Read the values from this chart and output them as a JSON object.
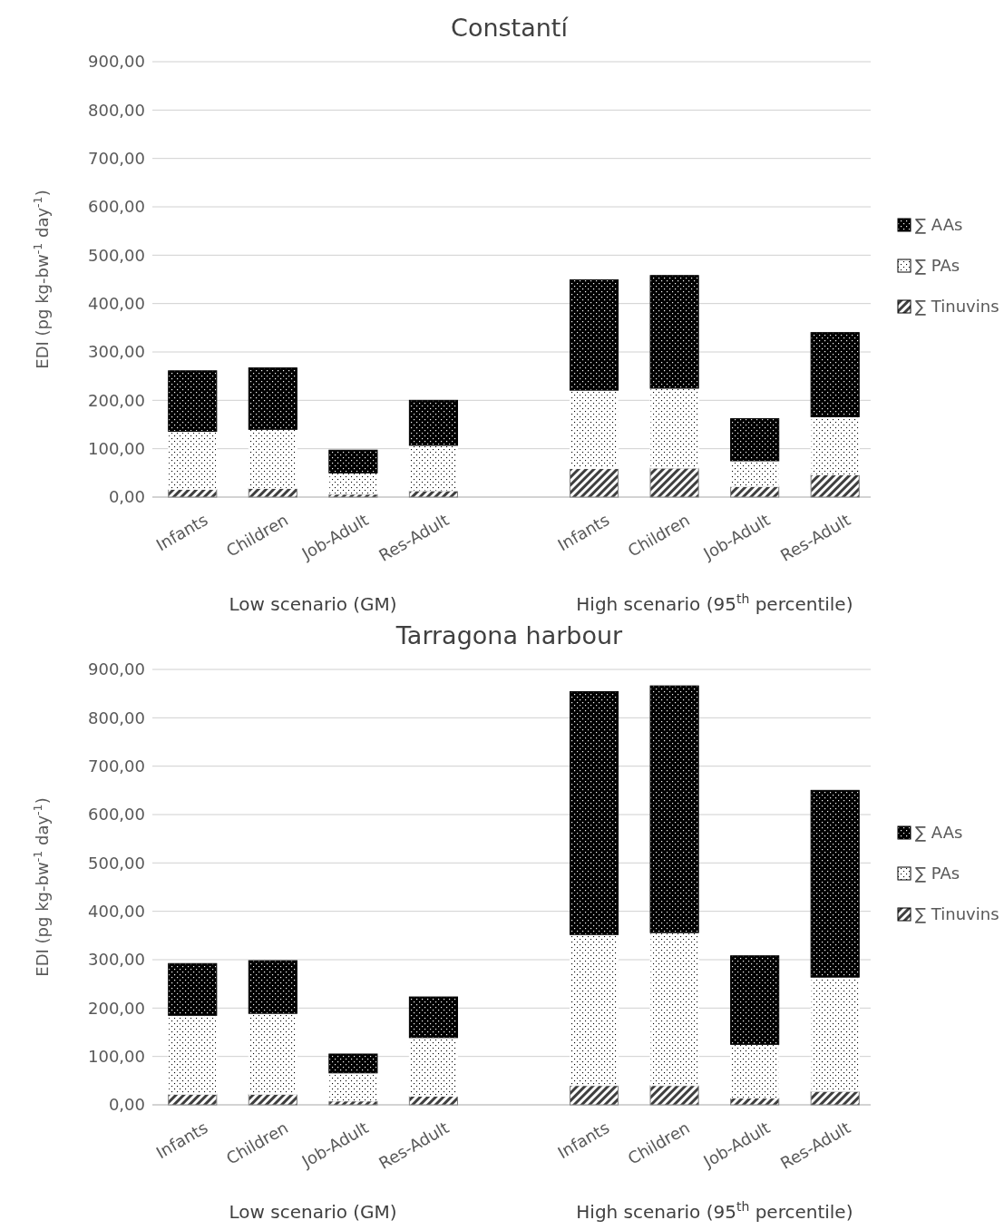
{
  "chart_data": [
    {
      "type": "bar",
      "title": "Constantí",
      "ylabel": "EDI (pg kg-bw$^{-1}$ day$^{-1}$)",
      "categories": [
        "Infants",
        "Children",
        "Job-Adult",
        "Res-Adult",
        null,
        "Infants",
        "Children",
        "Job-Adult",
        "Res-Adult"
      ],
      "stacked": true,
      "series": [
        {
          "name": "∑ Tinuvins",
          "color": "#808080",
          "values": [
            16,
            18,
            6,
            13,
            null,
            59,
            60,
            22,
            46
          ]
        },
        {
          "name": "∑ PAs",
          "color": "#ffffff",
          "values": [
            120,
            122,
            44,
            94,
            null,
            162,
            165,
            53,
            120
          ]
        },
        {
          "name": "∑ AAs",
          "color": "#000000",
          "values": [
            125,
            127,
            47,
            93,
            null,
            228,
            233,
            87,
            174
          ]
        }
      ],
      "ylim": [
        0,
        900
      ],
      "yticks": [
        {
          "value": 0,
          "label": "0,00"
        },
        {
          "value": 100,
          "label": "100,00"
        },
        {
          "value": 200,
          "label": "200,00"
        },
        {
          "value": 300,
          "label": "300,00"
        },
        {
          "value": 400,
          "label": "400,00"
        },
        {
          "value": 500,
          "label": "500,00"
        },
        {
          "value": 600,
          "label": "600,00"
        },
        {
          "value": 700,
          "label": "700,00"
        },
        {
          "value": 800,
          "label": "800,00"
        },
        {
          "value": 900,
          "label": "900,00"
        }
      ],
      "grid": "y",
      "legend": "right",
      "annotations": [
        "Low scenario (GM)",
        "High scenario (95$^{th}$ percentile)"
      ]
    },
    {
      "type": "bar",
      "title": "Tarragona harbour",
      "ylabel": "EDI (pg kg-bw$^{-1}$ day$^{-1}$)",
      "categories": [
        "Infants",
        "Children",
        "Job-Adult",
        "Res-Adult",
        null,
        "Infants",
        "Children",
        "Job-Adult",
        "Res-Adult"
      ],
      "stacked": true,
      "series": [
        {
          "name": "∑ Tinuvins",
          "color": "#808080",
          "values": [
            22,
            22,
            8,
            18,
            null,
            40,
            40,
            14,
            28
          ]
        },
        {
          "name": "∑ PAs",
          "color": "#ffffff",
          "values": [
            163,
            167,
            58,
            121,
            null,
            312,
            316,
            111,
            236
          ]
        },
        {
          "name": "∑ AAs",
          "color": "#000000",
          "values": [
            107,
            109,
            39,
            84,
            null,
            502,
            510,
            183,
            386
          ]
        }
      ],
      "ylim": [
        0,
        900
      ],
      "yticks": [
        {
          "value": 0,
          "label": "0,00"
        },
        {
          "value": 100,
          "label": "100,00"
        },
        {
          "value": 200,
          "label": "200,00"
        },
        {
          "value": 300,
          "label": "300,00"
        },
        {
          "value": 400,
          "label": "400,00"
        },
        {
          "value": 500,
          "label": "500,00"
        },
        {
          "value": 600,
          "label": "600,00"
        },
        {
          "value": 700,
          "label": "700,00"
        },
        {
          "value": 800,
          "label": "800,00"
        },
        {
          "value": 900,
          "label": "900,00"
        }
      ],
      "grid": "y",
      "legend": "right",
      "annotations": [
        "Low scenario (GM)",
        "High scenario (95$^{th}$ percentile)"
      ]
    }
  ]
}
